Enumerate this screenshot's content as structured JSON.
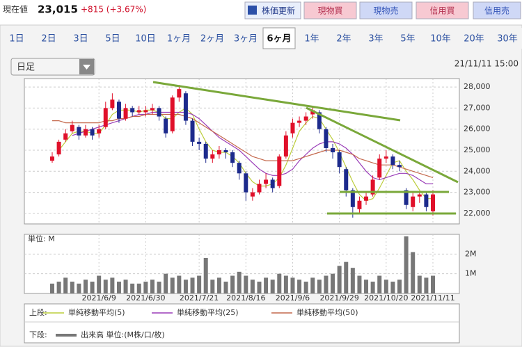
{
  "header": {
    "label": "現在値",
    "price": "23,015",
    "change": "+815 (+3.67%)",
    "buttons": [
      "株価更新",
      "現物買",
      "現物売",
      "信用買",
      "信用売"
    ]
  },
  "tabs": {
    "items": [
      "1日",
      "2日",
      "3日",
      "5日",
      "10日",
      "1ヶ月",
      "2ヶ月",
      "3ヶ月",
      "6ヶ月",
      "1年",
      "2年",
      "3年",
      "5年",
      "10年",
      "20年",
      "30年"
    ],
    "selected": 8
  },
  "dropdown": "日足",
  "timestamp": "21/11/11 15:00",
  "chart_data": {
    "type": "candlestick",
    "up_color": "#e0102a",
    "down_color": "#1c2a8c",
    "categories": [
      null,
      null,
      null,
      null,
      null,
      null,
      null,
      "2021/6/9",
      null,
      null,
      null,
      null,
      null,
      null,
      "2021/6/30",
      null,
      null,
      null,
      null,
      null,
      null,
      null,
      "2021/7/21",
      null,
      null,
      null,
      null,
      null,
      null,
      "2021/8/16",
      null,
      null,
      null,
      null,
      null,
      null,
      "2021/9/6",
      null,
      null,
      null,
      null,
      null,
      null,
      "2021/9/29",
      null,
      null,
      null,
      null,
      null,
      null,
      "2021/10/20",
      null,
      null,
      null,
      null,
      null,
      null,
      "2021/11/11"
    ],
    "open": [
      24500,
      24800,
      25500,
      25900,
      26100,
      25700,
      26000,
      25800,
      26100,
      27000,
      27300,
      26500,
      27000,
      26800,
      26800,
      26900,
      27000,
      26500,
      25900,
      27500,
      27700,
      26400,
      25400,
      25300,
      24600,
      24800,
      25000,
      24900,
      24400,
      23900,
      22800,
      23000,
      23400,
      23600,
      23300,
      24700,
      25800,
      26300,
      26400,
      26700,
      26800,
      26000,
      25100,
      24900,
      24100,
      23100,
      22200,
      22600,
      22900,
      23700,
      24600,
      24700,
      24300,
      23100,
      22300,
      22800,
      22900,
      22100
    ],
    "high": [
      24900,
      25500,
      26000,
      26400,
      26200,
      26200,
      26100,
      26200,
      27300,
      27700,
      27400,
      27200,
      27100,
      27100,
      27100,
      27200,
      27100,
      26600,
      27600,
      28100,
      27800,
      26500,
      25600,
      25400,
      25000,
      25200,
      25100,
      25000,
      24500,
      24000,
      23200,
      23600,
      23900,
      23700,
      24800,
      25900,
      26500,
      26600,
      26800,
      27100,
      26900,
      26100,
      25300,
      25000,
      24200,
      23200,
      22800,
      23000,
      23800,
      24800,
      25000,
      24800,
      24500,
      23200,
      23000,
      23000,
      23000,
      23100
    ],
    "low": [
      24400,
      24700,
      25400,
      25800,
      25500,
      25600,
      25500,
      25600,
      26000,
      26900,
      26300,
      26400,
      26600,
      26700,
      26600,
      26700,
      26400,
      25600,
      25800,
      27300,
      26200,
      25200,
      25000,
      24400,
      24400,
      24600,
      24600,
      24200,
      23600,
      22600,
      22600,
      22900,
      23200,
      23000,
      23200,
      24600,
      25600,
      26100,
      26200,
      26500,
      25800,
      24900,
      24600,
      23900,
      22800,
      21800,
      22000,
      22400,
      22800,
      23600,
      24400,
      24100,
      24000,
      22200,
      22100,
      22500,
      22100,
      21900
    ],
    "close": [
      24700,
      25400,
      25800,
      26200,
      25700,
      26000,
      25700,
      26000,
      27000,
      27400,
      26500,
      27000,
      26800,
      26900,
      26900,
      27000,
      26600,
      25800,
      27500,
      27900,
      26400,
      25400,
      25300,
      24600,
      24800,
      25000,
      24900,
      24400,
      23900,
      23000,
      23000,
      23400,
      23600,
      23200,
      24700,
      25700,
      26300,
      26400,
      26600,
      26900,
      26000,
      25100,
      24900,
      24200,
      23100,
      22300,
      22600,
      22800,
      23600,
      24600,
      24700,
      24300,
      24200,
      22400,
      22800,
      22900,
      22300,
      22900
    ],
    "series": [
      {
        "name": "単純移動平均(5)",
        "color": "#bccd3c",
        "values": [
          null,
          25000,
          25400,
          25800,
          25900,
          25900,
          25800,
          25800,
          26200,
          26700,
          26900,
          26900,
          26900,
          26800,
          26900,
          26900,
          26800,
          26500,
          26500,
          26800,
          27000,
          26700,
          26000,
          25400,
          25000,
          24900,
          24900,
          24700,
          24400,
          23900,
          23500,
          23300,
          23300,
          23400,
          23700,
          24300,
          25100,
          25900,
          26300,
          26600,
          26500,
          26000,
          25500,
          24900,
          24200,
          23500,
          22900,
          22600,
          22700,
          23200,
          23800,
          24400,
          24500,
          24000,
          23600,
          23100,
          22700,
          22700
        ]
      },
      {
        "name": "単純移動平均(25)",
        "color": "#9a3cb8",
        "values": [
          null,
          null,
          null,
          25700,
          25800,
          25900,
          26000,
          26100,
          26200,
          26300,
          26400,
          26500,
          26600,
          26700,
          26700,
          26800,
          26800,
          26800,
          26800,
          26800,
          26800,
          26700,
          26500,
          26200,
          25900,
          25600,
          25400,
          25200,
          25000,
          24700,
          24400,
          24100,
          23900,
          23800,
          23800,
          23900,
          24100,
          24500,
          24800,
          25100,
          25300,
          25400,
          25400,
          25300,
          25100,
          24800,
          24400,
          24000,
          23700,
          23600,
          23700,
          23800,
          23900,
          23900,
          23800,
          23600,
          23400,
          23400
        ]
      },
      {
        "name": "単純移動平均(50)",
        "color": "#c4684c",
        "values": [
          26400,
          26400,
          26300,
          26300,
          26300,
          26300,
          26300,
          26300,
          26400,
          26400,
          26500,
          26500,
          26600,
          26600,
          26700,
          26700,
          26700,
          26700,
          26700,
          26700,
          26600,
          26500,
          26300,
          26100,
          25900,
          25700,
          25500,
          25300,
          25100,
          24900,
          24700,
          24600,
          24500,
          24500,
          24500,
          24500,
          24500,
          24600,
          24700,
          24800,
          24900,
          25000,
          25000,
          25000,
          24900,
          24800,
          24600,
          24500,
          24400,
          24300,
          24300,
          24300,
          24200,
          24100,
          24000,
          23900,
          23800,
          23700
        ]
      }
    ],
    "ylim": [
      21500,
      28400
    ],
    "yticks": [
      {
        "value": 22000,
        "label": "22,000"
      },
      {
        "value": 23000,
        "label": "23,000"
      },
      {
        "value": 24000,
        "label": "24,000"
      },
      {
        "value": 25000,
        "label": "25,000"
      },
      {
        "value": 26000,
        "label": "26,000"
      },
      {
        "value": 27000,
        "label": "27,000"
      },
      {
        "value": 28000,
        "label": "28,000"
      }
    ],
    "grid": true,
    "volume": {
      "name": "出来高 単位:(M株/口/枚)",
      "unit_label": "単位: M",
      "color": "#777777",
      "values": [
        0.5,
        0.6,
        0.8,
        0.6,
        0.5,
        0.7,
        0.6,
        0.9,
        0.7,
        0.8,
        0.6,
        0.7,
        0.5,
        0.5,
        0.6,
        0.7,
        0.6,
        1.0,
        0.8,
        0.9,
        0.7,
        0.8,
        0.9,
        1.8,
        0.7,
        0.8,
        0.6,
        0.9,
        1.1,
        0.9,
        0.7,
        0.6,
        0.8,
        0.7,
        1.0,
        0.9,
        0.8,
        0.7,
        0.6,
        0.8,
        0.7,
        0.9,
        1.0,
        1.4,
        1.6,
        1.3,
        0.9,
        0.7,
        0.6,
        0.9,
        0.7,
        0.6,
        0.7,
        2.9,
        2.1,
        0.9,
        0.8,
        0.9
      ],
      "ylim": [
        0,
        3
      ],
      "yticks": [
        {
          "value": 1,
          "label": "1M"
        },
        {
          "value": 2,
          "label": "2M"
        }
      ]
    },
    "legend": {
      "upper": "上段:",
      "lower": "下段:"
    }
  }
}
